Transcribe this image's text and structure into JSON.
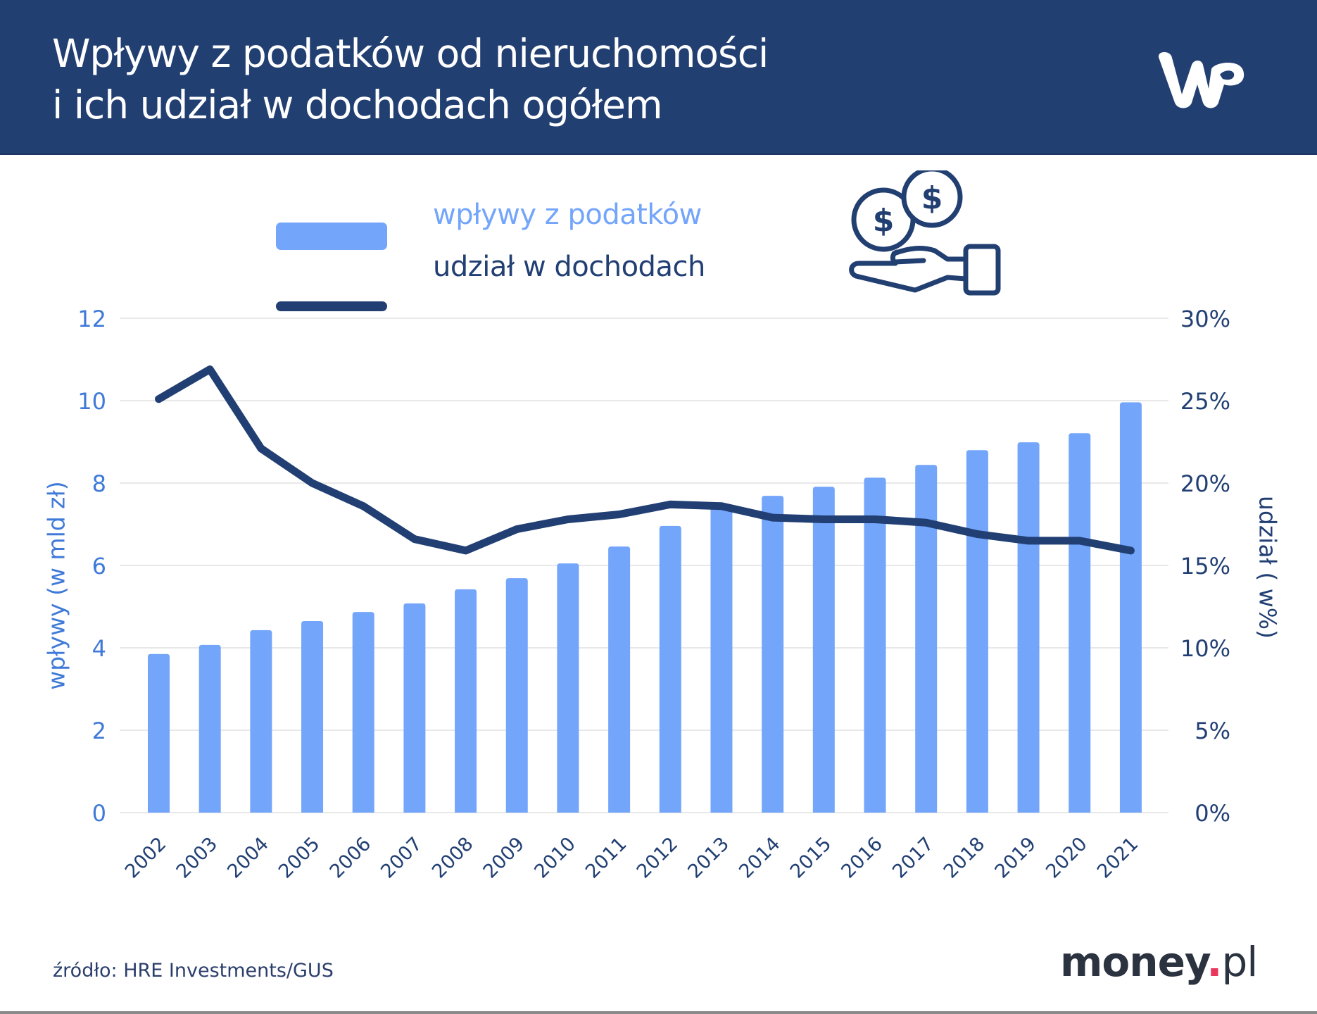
{
  "header": {
    "title_line1": "Wpływy z podatków od nieruchomości",
    "title_line2": "i ich udział w dochodach ogółem",
    "logo": "WP",
    "background_color": "#223f72"
  },
  "legend": {
    "bars_label": "wpływy z podatków",
    "line_label": "udział w dochodach",
    "icon": "hand-with-coins-icon"
  },
  "axes": {
    "left_title": "wpływy (w mld zł)",
    "right_title": "udział ( w%)",
    "left_ticks": [
      "0",
      "2",
      "4",
      "6",
      "8",
      "10",
      "12"
    ],
    "right_ticks": [
      "0%",
      "5%",
      "10%",
      "15%",
      "20%",
      "25%",
      "30%"
    ]
  },
  "footer": {
    "source": "źródło: HRE Investments/GUS",
    "brand_main": "money",
    "brand_dot": ".",
    "brand_suffix": "pl"
  },
  "colors": {
    "bar": "#73a5fb",
    "line": "#213f73",
    "left_axis": "#3f7ad8",
    "right_axis": "#213f73",
    "grid": "#e8e8e8"
  },
  "chart_data": {
    "type": "bar",
    "title": "Wpływy z podatków od nieruchomości i ich udział w dochodach ogółem",
    "xlabel": "",
    "ylabel": "wpływy (w mld zł)",
    "y2label": "udział ( w%)",
    "ylim": [
      0,
      12
    ],
    "y2lim": [
      0,
      30
    ],
    "grid": true,
    "legend_position": "top",
    "categories": [
      "2002",
      "2003",
      "2004",
      "2005",
      "2006",
      "2007",
      "2008",
      "2009",
      "2010",
      "2011",
      "2012",
      "2013",
      "2014",
      "2015",
      "2016",
      "2017",
      "2018",
      "2019",
      "2020",
      "2021"
    ],
    "series": [
      {
        "name": "wpływy z podatków",
        "type": "bar",
        "axis": "left",
        "values": [
          3.85,
          4.07,
          4.43,
          4.65,
          4.87,
          5.08,
          5.42,
          5.69,
          6.05,
          6.46,
          6.96,
          7.45,
          7.69,
          7.91,
          8.13,
          8.44,
          8.8,
          8.99,
          9.21,
          9.96
        ]
      },
      {
        "name": "udział w dochodach",
        "type": "line",
        "axis": "right",
        "values": [
          25.1,
          26.9,
          22.1,
          20.0,
          18.6,
          16.6,
          15.9,
          17.2,
          17.8,
          18.1,
          18.7,
          18.6,
          17.9,
          17.8,
          17.8,
          17.6,
          16.9,
          16.5,
          16.5,
          15.9
        ]
      }
    ],
    "source": "źródło: HRE Investments/GUS"
  }
}
